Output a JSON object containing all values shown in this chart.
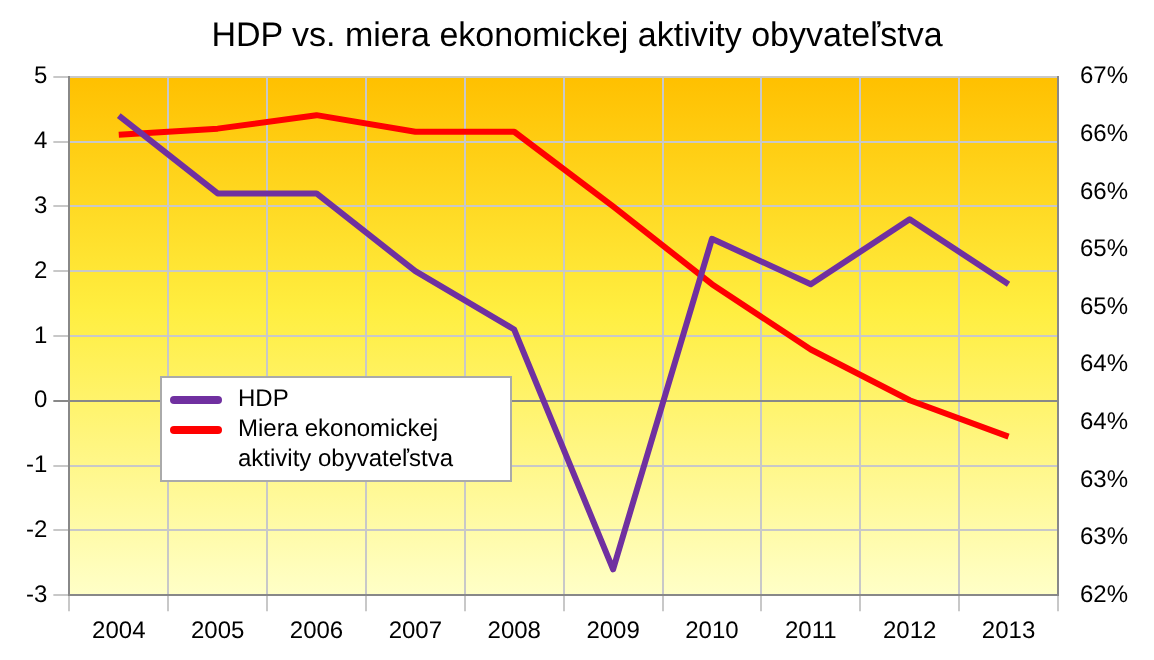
{
  "chart_data": {
    "type": "line",
    "title": "HDP vs. miera ekonomickej aktivity obyvateľstva",
    "categories": [
      "2004",
      "2005",
      "2006",
      "2007",
      "2008",
      "2009",
      "2010",
      "2011",
      "2012",
      "2013"
    ],
    "series": [
      {
        "name": "HDP",
        "color": "#7030a0",
        "values": [
          4.4,
          3.2,
          3.2,
          2.0,
          1.1,
          -2.6,
          2.5,
          1.8,
          2.8,
          1.8
        ]
      },
      {
        "name": "Miera ekonomickej aktivity obyvateľstva",
        "color": "#ff0000",
        "axis": "y2",
        "values": [
          66.44,
          66.5,
          66.63,
          66.47,
          66.47,
          65.75,
          65.0,
          64.37,
          63.88,
          63.53
        ]
      }
    ],
    "ylim": [
      -3,
      5
    ],
    "yticks": [
      -3,
      -2,
      -1,
      0,
      1,
      2,
      3,
      4,
      5
    ],
    "y2lim": [
      62,
      67
    ],
    "y2ticks": [
      {
        "value": 62,
        "label": "62%"
      },
      {
        "value": 62.556,
        "label": "63%"
      },
      {
        "value": 63.111,
        "label": "63%"
      },
      {
        "value": 63.667,
        "label": "64%"
      },
      {
        "value": 64.222,
        "label": "64%"
      },
      {
        "value": 64.778,
        "label": "65%"
      },
      {
        "value": 65.333,
        "label": "65%"
      },
      {
        "value": 65.889,
        "label": "66%"
      },
      {
        "value": 66.444,
        "label": "66%"
      },
      {
        "value": 67,
        "label": "67%"
      }
    ],
    "grid": true,
    "legend": "left",
    "marker": "none",
    "line_style": "solid"
  }
}
